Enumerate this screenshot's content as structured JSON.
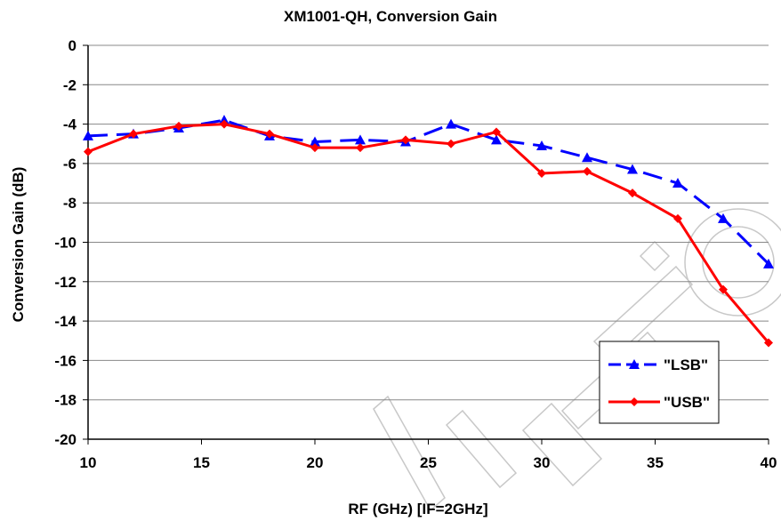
{
  "chart_data": {
    "type": "line",
    "title": "XM1001-QH, Conversion Gain",
    "xlabel": "RF (GHz) [IF=2GHz]",
    "ylabel": "Conversion Gain (dB)",
    "xlim": [
      10,
      40
    ],
    "ylim": [
      -20,
      0
    ],
    "xticks": [
      10,
      15,
      20,
      25,
      30,
      35,
      40
    ],
    "yticks": [
      0,
      -2,
      -4,
      -6,
      -8,
      -10,
      -12,
      -14,
      -16,
      -18,
      -20
    ],
    "grid": "horizontal",
    "legend_position": "bottom-right",
    "series": [
      {
        "name": "\"LSB\"",
        "color": "#0000ff",
        "marker": "triangle",
        "dash": "dashed",
        "x": [
          10,
          12,
          14,
          16,
          18,
          20,
          22,
          24,
          26,
          28,
          30,
          32,
          34,
          36,
          38,
          40
        ],
        "y": [
          -4.6,
          -4.5,
          -4.2,
          -3.8,
          -4.6,
          -4.9,
          -4.8,
          -4.9,
          -4.0,
          -4.8,
          -5.1,
          -5.7,
          -6.3,
          -7.0,
          -8.8,
          -11.1
        ]
      },
      {
        "name": "\"USB\"",
        "color": "#ff0000",
        "marker": "diamond",
        "dash": "solid",
        "x": [
          10,
          12,
          14,
          16,
          18,
          20,
          22,
          24,
          26,
          28,
          30,
          32,
          34,
          36,
          38,
          40
        ],
        "y": [
          -5.4,
          -4.5,
          -4.1,
          -4.0,
          -4.5,
          -5.2,
          -5.2,
          -4.8,
          -5.0,
          -4.4,
          -6.5,
          -6.4,
          -7.5,
          -8.8,
          -12.4,
          -15.1
        ]
      }
    ]
  }
}
